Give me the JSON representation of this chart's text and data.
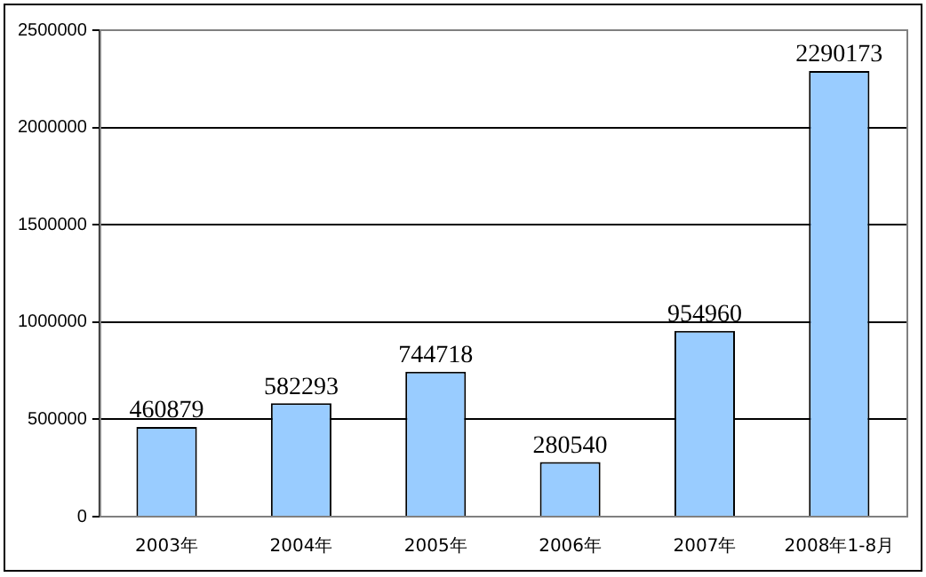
{
  "chart_data": {
    "type": "bar",
    "categories": [
      "2003年",
      "2004年",
      "2005年",
      "2006年",
      "2007年",
      "2008年1-8月"
    ],
    "values": [
      460879,
      582293,
      744718,
      280540,
      954960,
      2290173
    ],
    "color": "#99ccff",
    "ylim": [
      0,
      2500000
    ],
    "yticks": [
      0,
      500000,
      1000000,
      1500000,
      2000000,
      2500000
    ],
    "grid": "y",
    "data_labels": true
  }
}
